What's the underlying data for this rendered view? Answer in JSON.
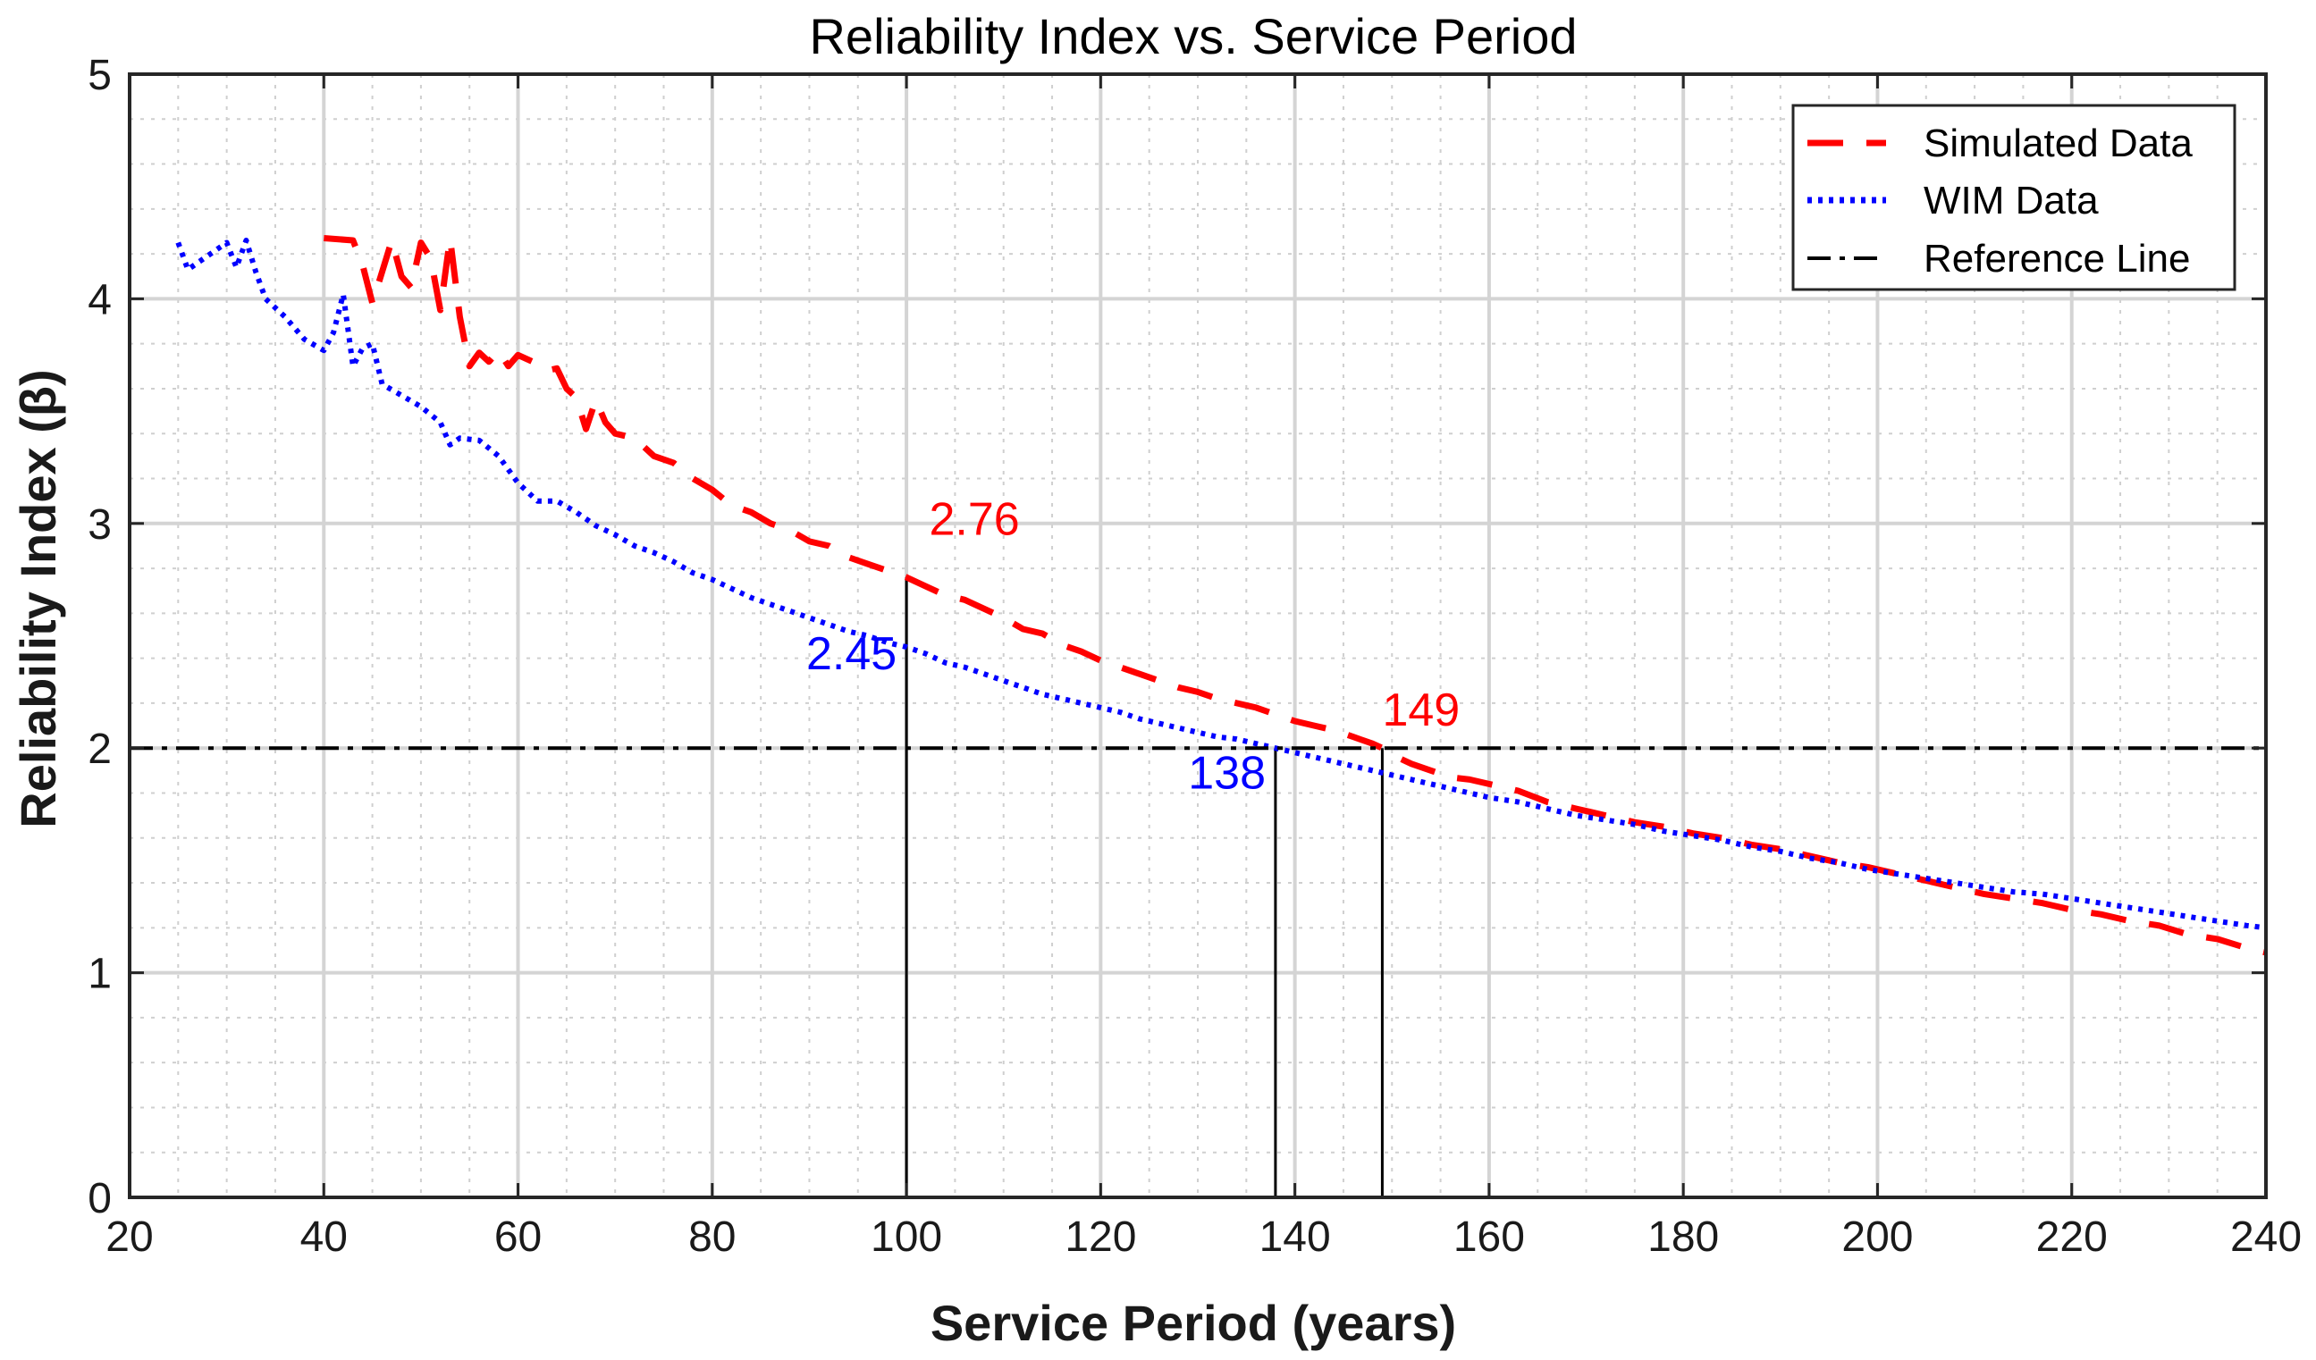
{
  "chart_data": {
    "type": "line",
    "title": "Reliability Index vs. Service Period",
    "xlabel": "Service Period (years)",
    "ylabel": "Reliability Index (β)",
    "xlim": [
      20,
      240
    ],
    "ylim": [
      0,
      5
    ],
    "xticks": [
      20,
      40,
      60,
      80,
      100,
      120,
      140,
      160,
      180,
      200,
      220,
      240
    ],
    "yticks": [
      0,
      1,
      2,
      3,
      4,
      5
    ],
    "grid": true,
    "minor_grid": true,
    "legend_position": "top-right",
    "colors": {
      "simulated": "#ff0000",
      "wim": "#0000ff",
      "reference": "#000000",
      "guide": "#000000"
    },
    "series": [
      {
        "name": "Simulated Data",
        "style": "dashed",
        "color": "#ff0000",
        "x": [
          40,
          43,
          44,
          45,
          46,
          47,
          48,
          49,
          50,
          51,
          52,
          53,
          54,
          55,
          56,
          57,
          58,
          59,
          60,
          62,
          63,
          64,
          65,
          66,
          67,
          68,
          69,
          70,
          72,
          74,
          76,
          78,
          80,
          82,
          84,
          86,
          88,
          90,
          92,
          94,
          96,
          98,
          100,
          102,
          104,
          106,
          108,
          110,
          112,
          114,
          116,
          118,
          120,
          122,
          124,
          126,
          128,
          130,
          132,
          134,
          136,
          138,
          140,
          142,
          144,
          146,
          148,
          149,
          150,
          152,
          154,
          156,
          158,
          160,
          163,
          166,
          169,
          172,
          175,
          178,
          181,
          184,
          187,
          190,
          193,
          196,
          199,
          202,
          205,
          208,
          211,
          214,
          217,
          220,
          223,
          226,
          229,
          232,
          235,
          238,
          240
        ],
        "y": [
          4.27,
          4.26,
          4.15,
          3.98,
          4.12,
          4.26,
          4.1,
          4.05,
          4.25,
          4.18,
          3.95,
          4.27,
          3.92,
          3.7,
          3.76,
          3.72,
          3.77,
          3.7,
          3.75,
          3.71,
          3.68,
          3.69,
          3.6,
          3.56,
          3.42,
          3.55,
          3.45,
          3.4,
          3.38,
          3.3,
          3.27,
          3.2,
          3.15,
          3.08,
          3.05,
          3.0,
          2.97,
          2.92,
          2.9,
          2.85,
          2.82,
          2.79,
          2.76,
          2.72,
          2.68,
          2.66,
          2.62,
          2.58,
          2.53,
          2.51,
          2.46,
          2.43,
          2.39,
          2.36,
          2.33,
          2.3,
          2.27,
          2.25,
          2.22,
          2.2,
          2.18,
          2.15,
          2.12,
          2.1,
          2.08,
          2.05,
          2.02,
          2.0,
          1.97,
          1.93,
          1.9,
          1.87,
          1.86,
          1.84,
          1.81,
          1.76,
          1.73,
          1.7,
          1.67,
          1.65,
          1.62,
          1.6,
          1.57,
          1.55,
          1.52,
          1.49,
          1.47,
          1.44,
          1.41,
          1.38,
          1.35,
          1.33,
          1.31,
          1.28,
          1.26,
          1.23,
          1.21,
          1.17,
          1.15,
          1.11,
          1.09
        ]
      },
      {
        "name": "WIM Data",
        "style": "dotted",
        "color": "#0000ff",
        "x": [
          25,
          26,
          30,
          31,
          32,
          33,
          34,
          36,
          38,
          40,
          41,
          42,
          43,
          44,
          45,
          46,
          48,
          50,
          52,
          53,
          54,
          56,
          58,
          60,
          62,
          64,
          66,
          68,
          70,
          72,
          74,
          76,
          78,
          80,
          82,
          84,
          86,
          88,
          90,
          92,
          94,
          96,
          98,
          100,
          102,
          104,
          106,
          108,
          110,
          112,
          114,
          116,
          118,
          120,
          122,
          124,
          126,
          128,
          130,
          132,
          134,
          136,
          138,
          140,
          142,
          144,
          146,
          148,
          150,
          152,
          154,
          156,
          158,
          160,
          163,
          166,
          169,
          172,
          175,
          178,
          181,
          184,
          187,
          190,
          193,
          196,
          199,
          202,
          205,
          208,
          211,
          214,
          217,
          220,
          223,
          226,
          229,
          232,
          235,
          238,
          240
        ],
        "y": [
          4.25,
          4.13,
          4.25,
          4.14,
          4.26,
          4.12,
          4.0,
          3.92,
          3.82,
          3.77,
          3.85,
          4.02,
          3.7,
          3.78,
          3.8,
          3.62,
          3.57,
          3.52,
          3.45,
          3.35,
          3.38,
          3.37,
          3.3,
          3.18,
          3.1,
          3.1,
          3.05,
          2.99,
          2.95,
          2.9,
          2.87,
          2.83,
          2.78,
          2.75,
          2.71,
          2.67,
          2.64,
          2.61,
          2.58,
          2.55,
          2.52,
          2.5,
          2.47,
          2.45,
          2.42,
          2.38,
          2.36,
          2.33,
          2.3,
          2.27,
          2.24,
          2.22,
          2.2,
          2.18,
          2.16,
          2.13,
          2.11,
          2.09,
          2.07,
          2.05,
          2.04,
          2.02,
          2.0,
          1.98,
          1.96,
          1.94,
          1.92,
          1.9,
          1.88,
          1.86,
          1.84,
          1.82,
          1.8,
          1.78,
          1.76,
          1.73,
          1.7,
          1.68,
          1.66,
          1.63,
          1.61,
          1.59,
          1.56,
          1.54,
          1.51,
          1.49,
          1.46,
          1.44,
          1.42,
          1.4,
          1.38,
          1.36,
          1.35,
          1.33,
          1.31,
          1.29,
          1.27,
          1.25,
          1.23,
          1.21,
          1.2
        ]
      },
      {
        "name": "Reference Line",
        "style": "dashdot",
        "color": "#000000",
        "x": [
          20,
          240
        ],
        "y": [
          2,
          2
        ]
      }
    ],
    "guides": [
      {
        "x": 100,
        "y_top": 2.76
      },
      {
        "x": 138,
        "y_top": 2.0
      },
      {
        "x": 149,
        "y_top": 2.0
      }
    ],
    "annotations": [
      {
        "text": "2.76",
        "x": 107,
        "y": 2.95,
        "color": "#ff0000",
        "anchor": "middle"
      },
      {
        "text": "2.45",
        "x": 99,
        "y": 2.35,
        "color": "#0000ff",
        "anchor": "end"
      },
      {
        "text": "149",
        "x": 153,
        "y": 2.1,
        "color": "#ff0000",
        "anchor": "middle"
      },
      {
        "text": "138",
        "x": 137,
        "y": 1.82,
        "color": "#0000ff",
        "anchor": "end"
      }
    ]
  }
}
